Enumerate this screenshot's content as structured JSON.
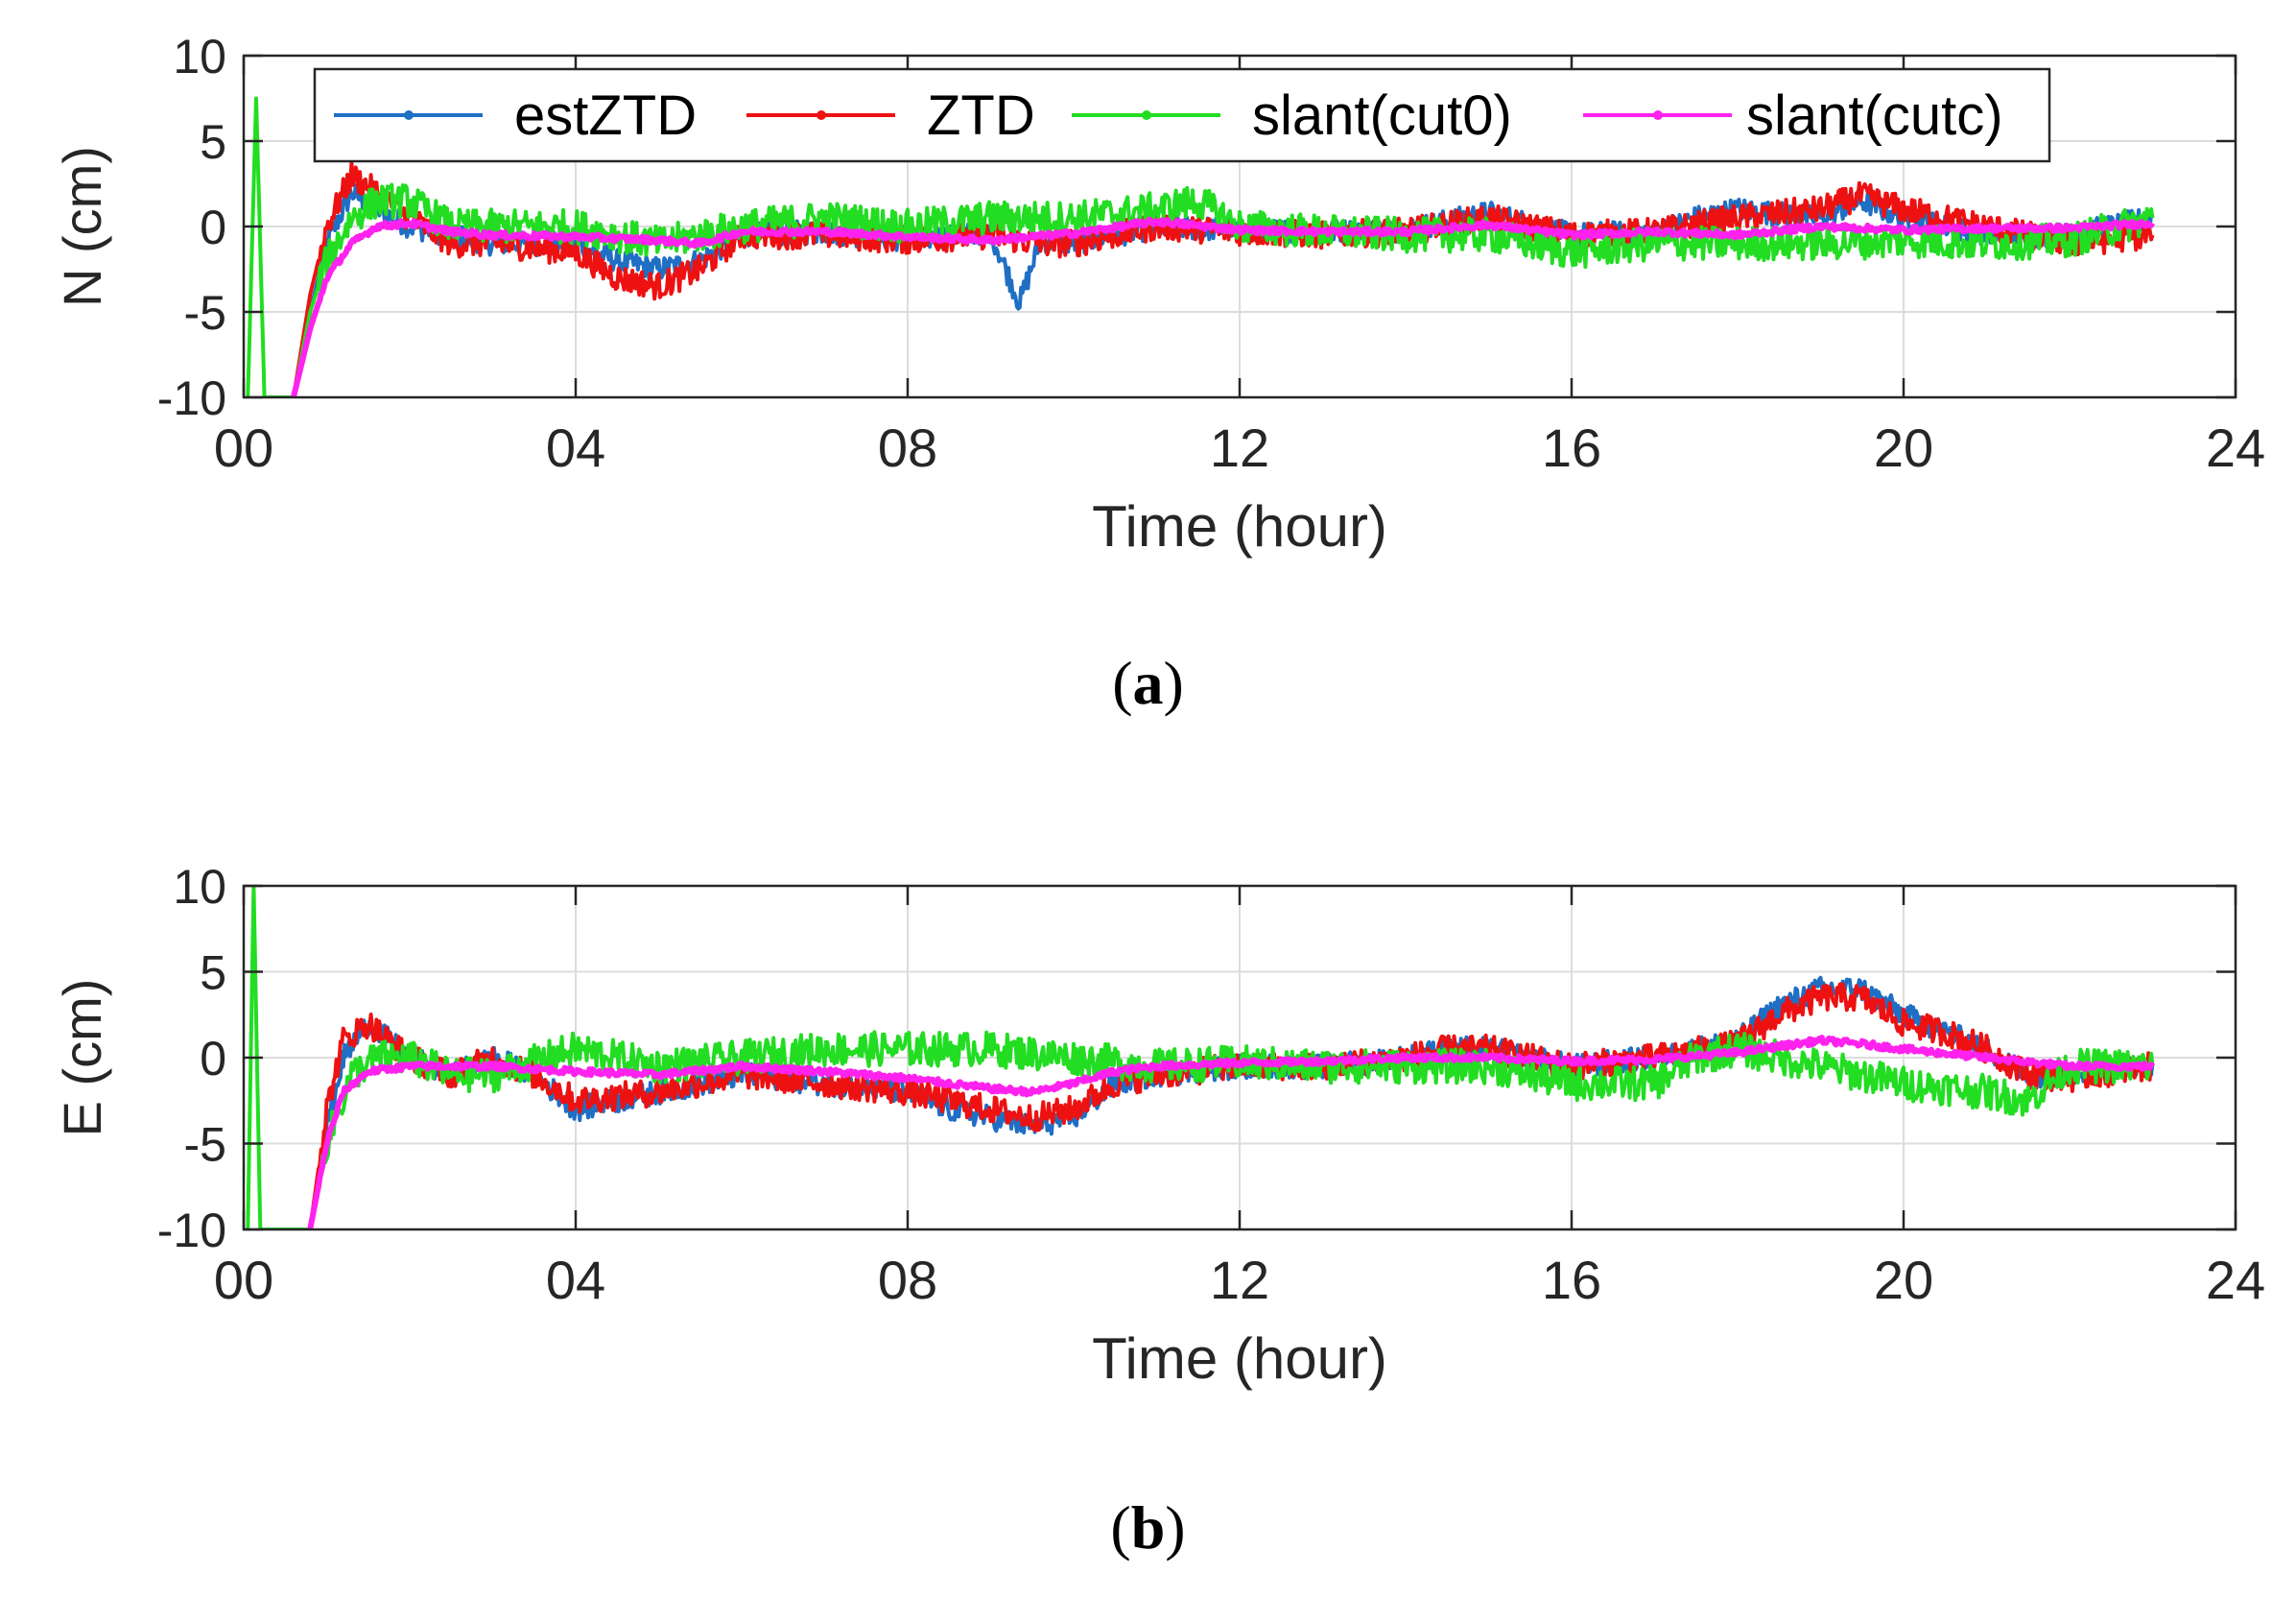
{
  "figure": {
    "caption_a": "a",
    "caption_b": "b"
  },
  "chart_data": [
    {
      "type": "line",
      "panel": "a",
      "xlabel": "Time  (hour)",
      "ylabel": "N (cm)",
      "xlim": [
        0,
        24
      ],
      "ylim": [
        -10,
        10
      ],
      "xticks": [
        0,
        4,
        8,
        12,
        16,
        20,
        24
      ],
      "xtick_labels": [
        "00",
        "04",
        "08",
        "12",
        "16",
        "20",
        "24"
      ],
      "yticks": [
        -10,
        -5,
        0,
        5,
        10
      ],
      "ytick_labels": [
        "-10",
        "-5",
        "0",
        "5",
        "10"
      ],
      "grid": true,
      "legend": "top, horizontal",
      "series": [
        {
          "name": "estZTD",
          "color": "#1f6fc4",
          "x": [
            0.6,
            0.8,
            1.0,
            1.3,
            1.6,
            2.0,
            2.5,
            3.0,
            4.0,
            4.5,
            5.0,
            5.5,
            6.0,
            7.0,
            8.0,
            9.0,
            9.35,
            9.6,
            10.0,
            11.0,
            12.0,
            13.0,
            14.0,
            15.0,
            16.0,
            17.0,
            17.5,
            18.0,
            19.0,
            19.5,
            20.0,
            21.0,
            22.0,
            23.0
          ],
          "y": [
            -10,
            -5,
            -1,
            2,
            1,
            0,
            -0.5,
            -1,
            -1,
            -2,
            -2.5,
            -2,
            -0.5,
            -0.3,
            -0.8,
            -0.3,
            -4.5,
            -0.8,
            -1,
            0,
            -0.2,
            -0.3,
            -0.2,
            0.8,
            -0.5,
            -0.3,
            0.5,
            1,
            0.5,
            1.5,
            0.5,
            -0.5,
            -0.5,
            0.5
          ]
        },
        {
          "name": "ZTD",
          "color": "#ee1111",
          "x": [
            0.6,
            0.8,
            1.0,
            1.3,
            1.6,
            2.0,
            2.5,
            3.0,
            4.0,
            4.5,
            5.0,
            5.5,
            6.0,
            7.0,
            8.0,
            9.0,
            9.6,
            10.0,
            11.0,
            12.0,
            13.0,
            14.0,
            15.0,
            16.0,
            17.0,
            18.0,
            19.0,
            19.5,
            20.0,
            21.0,
            22.0,
            23.0
          ],
          "y": [
            -10,
            -4,
            0,
            3,
            2,
            0.5,
            -1,
            -1,
            -1.5,
            -3,
            -3.5,
            -2.5,
            -0.5,
            -0.5,
            -0.8,
            -0.5,
            -1,
            -1,
            0,
            -0.3,
            -0.5,
            -0.3,
            0.5,
            -0.5,
            -0.3,
            0.5,
            1,
            1.8,
            1,
            0,
            -1,
            -0.5
          ]
        },
        {
          "name": "slant(cut0)",
          "color": "#22dd22",
          "x": [
            0.05,
            0.15,
            0.25,
            0.6,
            0.8,
            1.0,
            1.3,
            1.6,
            2.0,
            2.5,
            3.0,
            4.0,
            5.0,
            6.0,
            7.0,
            8.0,
            9.0,
            10.0,
            11.0,
            11.5,
            12.0,
            13.0,
            14.0,
            15.0,
            16.0,
            17.0,
            18.0,
            19.0,
            20.0,
            21.0,
            22.0,
            23.0
          ],
          "y": [
            -10,
            7.5,
            -10,
            -10,
            -5,
            -2,
            0.5,
            1.5,
            1.5,
            0,
            0,
            0,
            -1,
            0,
            0.5,
            0,
            0.5,
            0.5,
            1,
            1.5,
            0,
            -0.3,
            -0.5,
            -0.5,
            -1.5,
            -1,
            -1,
            -1,
            -0.8,
            -1,
            -0.8,
            0.5
          ]
        },
        {
          "name": "slant(cutc)",
          "color": "#ff22ee",
          "x": [
            0.6,
            0.8,
            1.0,
            1.3,
            1.6,
            2.0,
            2.5,
            3.0,
            4.0,
            5.0,
            5.5,
            6.0,
            7.0,
            8.0,
            9.0,
            10.0,
            11.0,
            12.0,
            13.0,
            14.0,
            15.0,
            16.0,
            17.0,
            18.0,
            19.0,
            20.0,
            21.0,
            22.0,
            23.0
          ],
          "y": [
            -10,
            -6,
            -3,
            -1,
            0,
            0.2,
            -0.3,
            -0.5,
            -0.6,
            -0.8,
            -1,
            -0.3,
            -0.3,
            -0.6,
            -0.8,
            -0.4,
            0.3,
            -0.2,
            -0.3,
            -0.3,
            0.1,
            -0.5,
            -0.3,
            -0.5,
            0,
            -0.2,
            -0.1,
            -0.1,
            0.2
          ]
        }
      ]
    },
    {
      "type": "line",
      "panel": "b",
      "xlabel": "Time  (hour)",
      "ylabel": "E  (cm)",
      "xlim": [
        0,
        24
      ],
      "ylim": [
        -10,
        10
      ],
      "xticks": [
        0,
        4,
        8,
        12,
        16,
        20,
        24
      ],
      "xtick_labels": [
        "00",
        "04",
        "08",
        "12",
        "16",
        "20",
        "24"
      ],
      "yticks": [
        -10,
        -5,
        0,
        5,
        10
      ],
      "ytick_labels": [
        "-10",
        "-5",
        "0",
        "5",
        "10"
      ],
      "grid": true,
      "series": [
        {
          "name": "estZTD",
          "color": "#1f6fc4",
          "x": [
            0.8,
            1.0,
            1.2,
            1.5,
            2.0,
            2.5,
            3.0,
            3.5,
            4.0,
            5.0,
            6.0,
            7.0,
            8.0,
            8.5,
            9.0,
            9.5,
            10.0,
            10.5,
            11.0,
            12.0,
            13.0,
            14.0,
            14.5,
            15.0,
            16.0,
            17.0,
            18.0,
            18.5,
            19.0,
            19.5,
            20.0,
            20.5,
            21.0,
            21.5,
            22.0,
            23.0
          ],
          "y": [
            -10,
            -4,
            0,
            2,
            0,
            -1,
            0,
            -1,
            -3,
            -2,
            -1,
            -1.5,
            -2,
            -3,
            -3.5,
            -4,
            -3.5,
            -1.5,
            -1,
            -0.5,
            -0.5,
            0,
            0.5,
            0.5,
            -0.5,
            0,
            1,
            3,
            4,
            4,
            2.5,
            1.5,
            0.5,
            -1,
            -1,
            -0.3
          ]
        },
        {
          "name": "ZTD",
          "color": "#ee1111",
          "x": [
            0.8,
            1.0,
            1.2,
            1.5,
            2.0,
            2.5,
            3.0,
            3.5,
            4.0,
            5.0,
            6.0,
            7.0,
            8.0,
            8.5,
            9.0,
            9.5,
            10.0,
            10.5,
            11.0,
            12.0,
            13.0,
            14.0,
            14.5,
            15.0,
            16.0,
            17.0,
            18.0,
            18.5,
            19.0,
            19.5,
            20.0,
            20.5,
            21.0,
            21.5,
            22.0,
            23.0
          ],
          "y": [
            -10,
            -3,
            1,
            2,
            0,
            -1,
            0,
            -1,
            -2.5,
            -2,
            -1,
            -1.5,
            -2,
            -2.5,
            -3,
            -3.5,
            -3,
            -1.5,
            -1,
            -0.5,
            -0.5,
            0,
            0.5,
            0.5,
            -0.5,
            0,
            0.8,
            2.5,
            3.5,
            3.5,
            2,
            1.5,
            0.5,
            -1,
            -1.2,
            -0.5
          ]
        },
        {
          "name": "slant(cut0)",
          "color": "#22dd22",
          "x": [
            0.05,
            0.12,
            0.2,
            0.8,
            1.0,
            1.3,
            1.6,
            2.0,
            2.5,
            3.0,
            4.0,
            5.0,
            6.0,
            7.0,
            8.0,
            9.0,
            10.0,
            11.0,
            12.0,
            13.0,
            14.0,
            15.0,
            16.0,
            17.0,
            17.5,
            18.0,
            19.0,
            20.0,
            21.0,
            21.5,
            22.0,
            23.0
          ],
          "y": [
            -10,
            10,
            -10,
            -10,
            -5,
            -1,
            0,
            0,
            -1,
            -1,
            0.5,
            -0.5,
            0,
            0.5,
            0.5,
            0.5,
            0,
            -0.5,
            -0.3,
            -0.5,
            -0.5,
            -0.5,
            -1.5,
            -1.5,
            0,
            0.5,
            -0.5,
            -1.5,
            -2,
            -2.5,
            -0.5,
            -0.5
          ]
        },
        {
          "name": "slant(cutc)",
          "color": "#ff22ee",
          "x": [
            0.8,
            1.0,
            1.2,
            1.5,
            2.0,
            2.5,
            3.0,
            4.0,
            5.0,
            6.0,
            7.0,
            8.0,
            9.0,
            9.5,
            10.0,
            10.5,
            11.0,
            12.0,
            13.0,
            14.0,
            15.0,
            16.0,
            17.0,
            18.0,
            19.0,
            19.5,
            20.0,
            21.0,
            22.0,
            23.0
          ],
          "y": [
            -10,
            -5,
            -2,
            -0.8,
            -0.5,
            -0.5,
            -0.5,
            -0.8,
            -1,
            -0.5,
            -0.8,
            -1.2,
            -1.8,
            -2,
            -1.5,
            -0.8,
            -0.5,
            -0.3,
            -0.2,
            0,
            0,
            -0.2,
            -0.1,
            0.3,
            1,
            0.8,
            0.5,
            0,
            -0.5,
            -0.5
          ]
        }
      ]
    }
  ]
}
